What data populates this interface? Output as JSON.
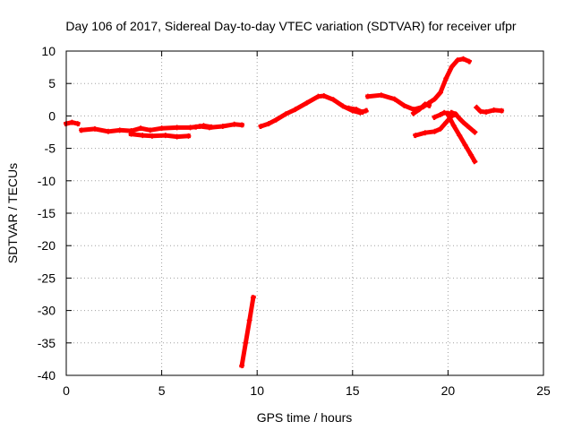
{
  "chart_data": {
    "type": "scatter",
    "title": "Day 106 of 2017, Sidereal Day-to-day VTEC variation (SDTVAR) for receiver ufpr",
    "xlabel": "GPS time / hours",
    "ylabel": "SDTVAR / TECUs",
    "xlim": [
      0,
      25
    ],
    "ylim": [
      -40,
      10
    ],
    "grid": true,
    "x_ticks": [
      0,
      5,
      10,
      15,
      20,
      25
    ],
    "y_ticks": [
      -40,
      -35,
      -30,
      -25,
      -20,
      -15,
      -10,
      -5,
      0,
      5,
      10
    ],
    "series": [
      {
        "name": "SDTVAR",
        "color": "#ff0000",
        "segments": [
          [
            [
              0.0,
              -1.2
            ],
            [
              0.3,
              -1.0
            ],
            [
              0.6,
              -1.2
            ]
          ],
          [
            [
              0.8,
              -2.2
            ],
            [
              1.5,
              -2.0
            ],
            [
              2.2,
              -2.4
            ],
            [
              2.8,
              -2.2
            ],
            [
              3.4,
              -2.3
            ],
            [
              3.9,
              -1.9
            ],
            [
              4.4,
              -2.2
            ],
            [
              5.0,
              -1.9
            ],
            [
              5.8,
              -1.8
            ],
            [
              6.5,
              -1.8
            ],
            [
              7.0,
              -1.6
            ],
            [
              7.5,
              -1.8
            ],
            [
              8.2,
              -1.6
            ],
            [
              8.8,
              -1.3
            ],
            [
              9.2,
              -1.4
            ]
          ],
          [
            [
              3.4,
              -2.8
            ],
            [
              4.0,
              -3.0
            ],
            [
              4.5,
              -3.1
            ],
            [
              5.2,
              -3.0
            ],
            [
              5.8,
              -3.2
            ],
            [
              6.4,
              -3.1
            ]
          ],
          [
            [
              6.8,
              -1.7
            ],
            [
              7.2,
              -1.5
            ],
            [
              7.6,
              -1.7
            ]
          ],
          [
            [
              9.2,
              -38.5
            ],
            [
              9.4,
              -35.0
            ],
            [
              9.6,
              -31.5
            ],
            [
              9.8,
              -28.0
            ]
          ],
          [
            [
              10.2,
              -1.6
            ],
            [
              10.6,
              -1.2
            ],
            [
              11.0,
              -0.6
            ],
            [
              11.5,
              0.3
            ],
            [
              12.0,
              1.0
            ],
            [
              12.6,
              2.0
            ],
            [
              13.2,
              3.0
            ],
            [
              13.5,
              3.1
            ],
            [
              14.0,
              2.5
            ],
            [
              14.5,
              1.5
            ],
            [
              15.0,
              0.8
            ],
            [
              15.4,
              0.5
            ],
            [
              15.7,
              0.8
            ]
          ],
          [
            [
              14.8,
              1.2
            ],
            [
              15.2,
              1.0
            ],
            [
              15.5,
              0.6
            ]
          ],
          [
            [
              15.8,
              3.0
            ],
            [
              16.5,
              3.2
            ],
            [
              17.2,
              2.6
            ],
            [
              17.7,
              1.6
            ],
            [
              18.2,
              1.0
            ],
            [
              18.7,
              1.4
            ],
            [
              19.0,
              2.0
            ],
            [
              19.3,
              2.6
            ],
            [
              19.6,
              3.6
            ],
            [
              19.9,
              5.8
            ],
            [
              20.2,
              7.6
            ],
            [
              20.5,
              8.6
            ],
            [
              20.8,
              8.8
            ],
            [
              21.1,
              8.4
            ]
          ],
          [
            [
              18.2,
              0.4
            ],
            [
              18.5,
              1.0
            ],
            [
              18.8,
              1.8
            ],
            [
              19.0,
              1.6
            ]
          ],
          [
            [
              18.3,
              -3.0
            ],
            [
              18.8,
              -2.6
            ],
            [
              19.3,
              -2.4
            ],
            [
              19.6,
              -2.0
            ],
            [
              19.9,
              -1.0
            ],
            [
              20.2,
              0.0
            ],
            [
              20.4,
              0.2
            ]
          ],
          [
            [
              19.3,
              -0.2
            ],
            [
              19.6,
              0.2
            ],
            [
              19.8,
              0.5
            ],
            [
              20.0,
              0.4
            ]
          ],
          [
            [
              20.2,
              0.5
            ],
            [
              20.4,
              0.3
            ],
            [
              20.6,
              -0.4
            ],
            [
              20.8,
              -1.0
            ],
            [
              21.0,
              -1.5
            ],
            [
              21.4,
              -2.5
            ]
          ],
          [
            [
              20.0,
              0.2
            ],
            [
              20.3,
              -1.5
            ],
            [
              20.6,
              -3.0
            ],
            [
              20.9,
              -4.5
            ],
            [
              21.2,
              -6.0
            ],
            [
              21.4,
              -7.0
            ]
          ],
          [
            [
              21.5,
              1.3
            ],
            [
              21.7,
              0.7
            ],
            [
              22.0,
              0.6
            ],
            [
              22.4,
              0.9
            ],
            [
              22.8,
              0.8
            ]
          ]
        ]
      }
    ]
  }
}
